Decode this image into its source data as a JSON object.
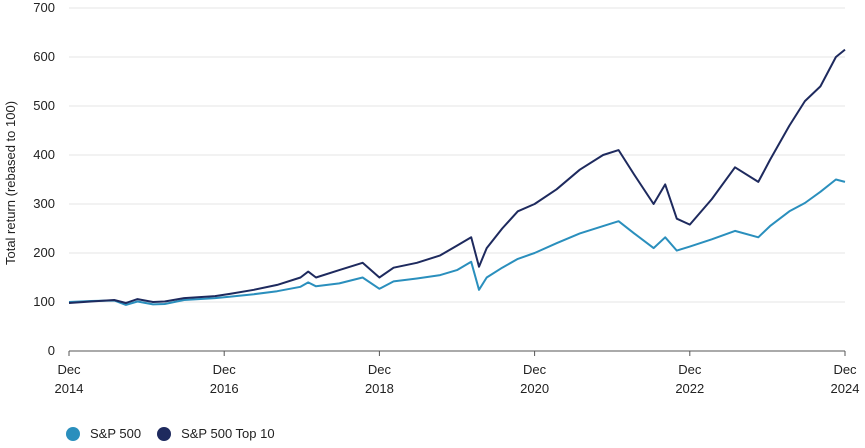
{
  "chart_data": {
    "type": "line",
    "title": "",
    "xlabel": "",
    "ylabel": "Total return (rebased to 100)",
    "ylim": [
      0,
      700
    ],
    "yticks": [
      0,
      100,
      200,
      300,
      400,
      500,
      600,
      700
    ],
    "xlim": [
      2014.917,
      2024.917
    ],
    "xticks": [
      {
        "value": 2014.917,
        "month": "Dec",
        "year": "2014"
      },
      {
        "value": 2016.917,
        "month": "Dec",
        "year": "2016"
      },
      {
        "value": 2018.917,
        "month": "Dec",
        "year": "2018"
      },
      {
        "value": 2020.917,
        "month": "Dec",
        "year": "2020"
      },
      {
        "value": 2022.917,
        "month": "Dec",
        "year": "2022"
      },
      {
        "value": 2024.917,
        "month": "Dec",
        "year": "2024"
      }
    ],
    "grid": true,
    "legend_position": "bottom-left",
    "series": [
      {
        "name": "S&P 500",
        "color": "#2a8fbd",
        "points": [
          [
            2014.917,
            100
          ],
          [
            2015.2,
            102
          ],
          [
            2015.5,
            103
          ],
          [
            2015.65,
            94
          ],
          [
            2015.8,
            101
          ],
          [
            2016.0,
            95
          ],
          [
            2016.15,
            96
          ],
          [
            2016.4,
            104
          ],
          [
            2016.8,
            108
          ],
          [
            2017.0,
            111
          ],
          [
            2017.3,
            116
          ],
          [
            2017.6,
            122
          ],
          [
            2017.9,
            131
          ],
          [
            2018.0,
            140
          ],
          [
            2018.1,
            132
          ],
          [
            2018.4,
            138
          ],
          [
            2018.7,
            150
          ],
          [
            2018.917,
            127
          ],
          [
            2019.1,
            142
          ],
          [
            2019.4,
            148
          ],
          [
            2019.7,
            155
          ],
          [
            2019.917,
            165
          ],
          [
            2020.1,
            182
          ],
          [
            2020.2,
            125
          ],
          [
            2020.3,
            150
          ],
          [
            2020.5,
            170
          ],
          [
            2020.7,
            188
          ],
          [
            2020.917,
            200
          ],
          [
            2021.2,
            220
          ],
          [
            2021.5,
            240
          ],
          [
            2021.8,
            255
          ],
          [
            2022.0,
            265
          ],
          [
            2022.2,
            240
          ],
          [
            2022.45,
            210
          ],
          [
            2022.6,
            232
          ],
          [
            2022.75,
            205
          ],
          [
            2022.917,
            213
          ],
          [
            2023.2,
            228
          ],
          [
            2023.5,
            245
          ],
          [
            2023.8,
            232
          ],
          [
            2023.95,
            255
          ],
          [
            2024.2,
            285
          ],
          [
            2024.4,
            302
          ],
          [
            2024.6,
            325
          ],
          [
            2024.8,
            350
          ],
          [
            2024.917,
            345
          ]
        ]
      },
      {
        "name": "S&P 500 Top 10",
        "color": "#1e2a5e",
        "points": [
          [
            2014.917,
            98
          ],
          [
            2015.2,
            101
          ],
          [
            2015.5,
            104
          ],
          [
            2015.65,
            98
          ],
          [
            2015.8,
            106
          ],
          [
            2016.0,
            100
          ],
          [
            2016.15,
            101
          ],
          [
            2016.4,
            108
          ],
          [
            2016.8,
            112
          ],
          [
            2017.0,
            117
          ],
          [
            2017.3,
            125
          ],
          [
            2017.6,
            135
          ],
          [
            2017.9,
            150
          ],
          [
            2018.0,
            162
          ],
          [
            2018.1,
            150
          ],
          [
            2018.4,
            165
          ],
          [
            2018.7,
            180
          ],
          [
            2018.917,
            150
          ],
          [
            2019.1,
            170
          ],
          [
            2019.4,
            180
          ],
          [
            2019.7,
            195
          ],
          [
            2019.917,
            215
          ],
          [
            2020.1,
            232
          ],
          [
            2020.2,
            172
          ],
          [
            2020.3,
            210
          ],
          [
            2020.5,
            250
          ],
          [
            2020.7,
            285
          ],
          [
            2020.917,
            300
          ],
          [
            2021.2,
            330
          ],
          [
            2021.5,
            370
          ],
          [
            2021.8,
            400
          ],
          [
            2022.0,
            410
          ],
          [
            2022.2,
            360
          ],
          [
            2022.45,
            300
          ],
          [
            2022.6,
            340
          ],
          [
            2022.75,
            270
          ],
          [
            2022.917,
            258
          ],
          [
            2023.2,
            310
          ],
          [
            2023.5,
            375
          ],
          [
            2023.8,
            345
          ],
          [
            2023.95,
            390
          ],
          [
            2024.2,
            460
          ],
          [
            2024.4,
            510
          ],
          [
            2024.6,
            540
          ],
          [
            2024.8,
            600
          ],
          [
            2024.917,
            615
          ]
        ]
      }
    ]
  }
}
